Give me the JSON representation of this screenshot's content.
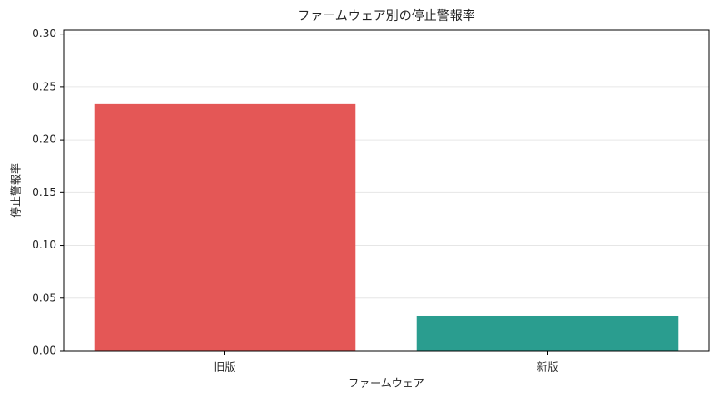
{
  "chart_data": {
    "type": "bar",
    "title": "ファームウェア別の停止警報率",
    "x_label": "ファームウェア",
    "y_label": "停止警報率",
    "categories": [
      "旧版",
      "新版"
    ],
    "values": [
      0.2337,
      0.0335
    ],
    "colors": [
      "#e45756",
      "#2a9d8f"
    ],
    "ylim": [
      0,
      0.304
    ],
    "yticks": [
      {
        "value": 0,
        "label": "0.00"
      },
      {
        "value": 0.05,
        "label": "0.05"
      },
      {
        "value": 0.1,
        "label": "0.10"
      },
      {
        "value": 0.15,
        "label": "0.15"
      },
      {
        "value": 0.2,
        "label": "0.20"
      },
      {
        "value": 0.25,
        "label": "0.25"
      },
      {
        "value": 0.3,
        "label": "0.30"
      }
    ],
    "grid": true
  }
}
